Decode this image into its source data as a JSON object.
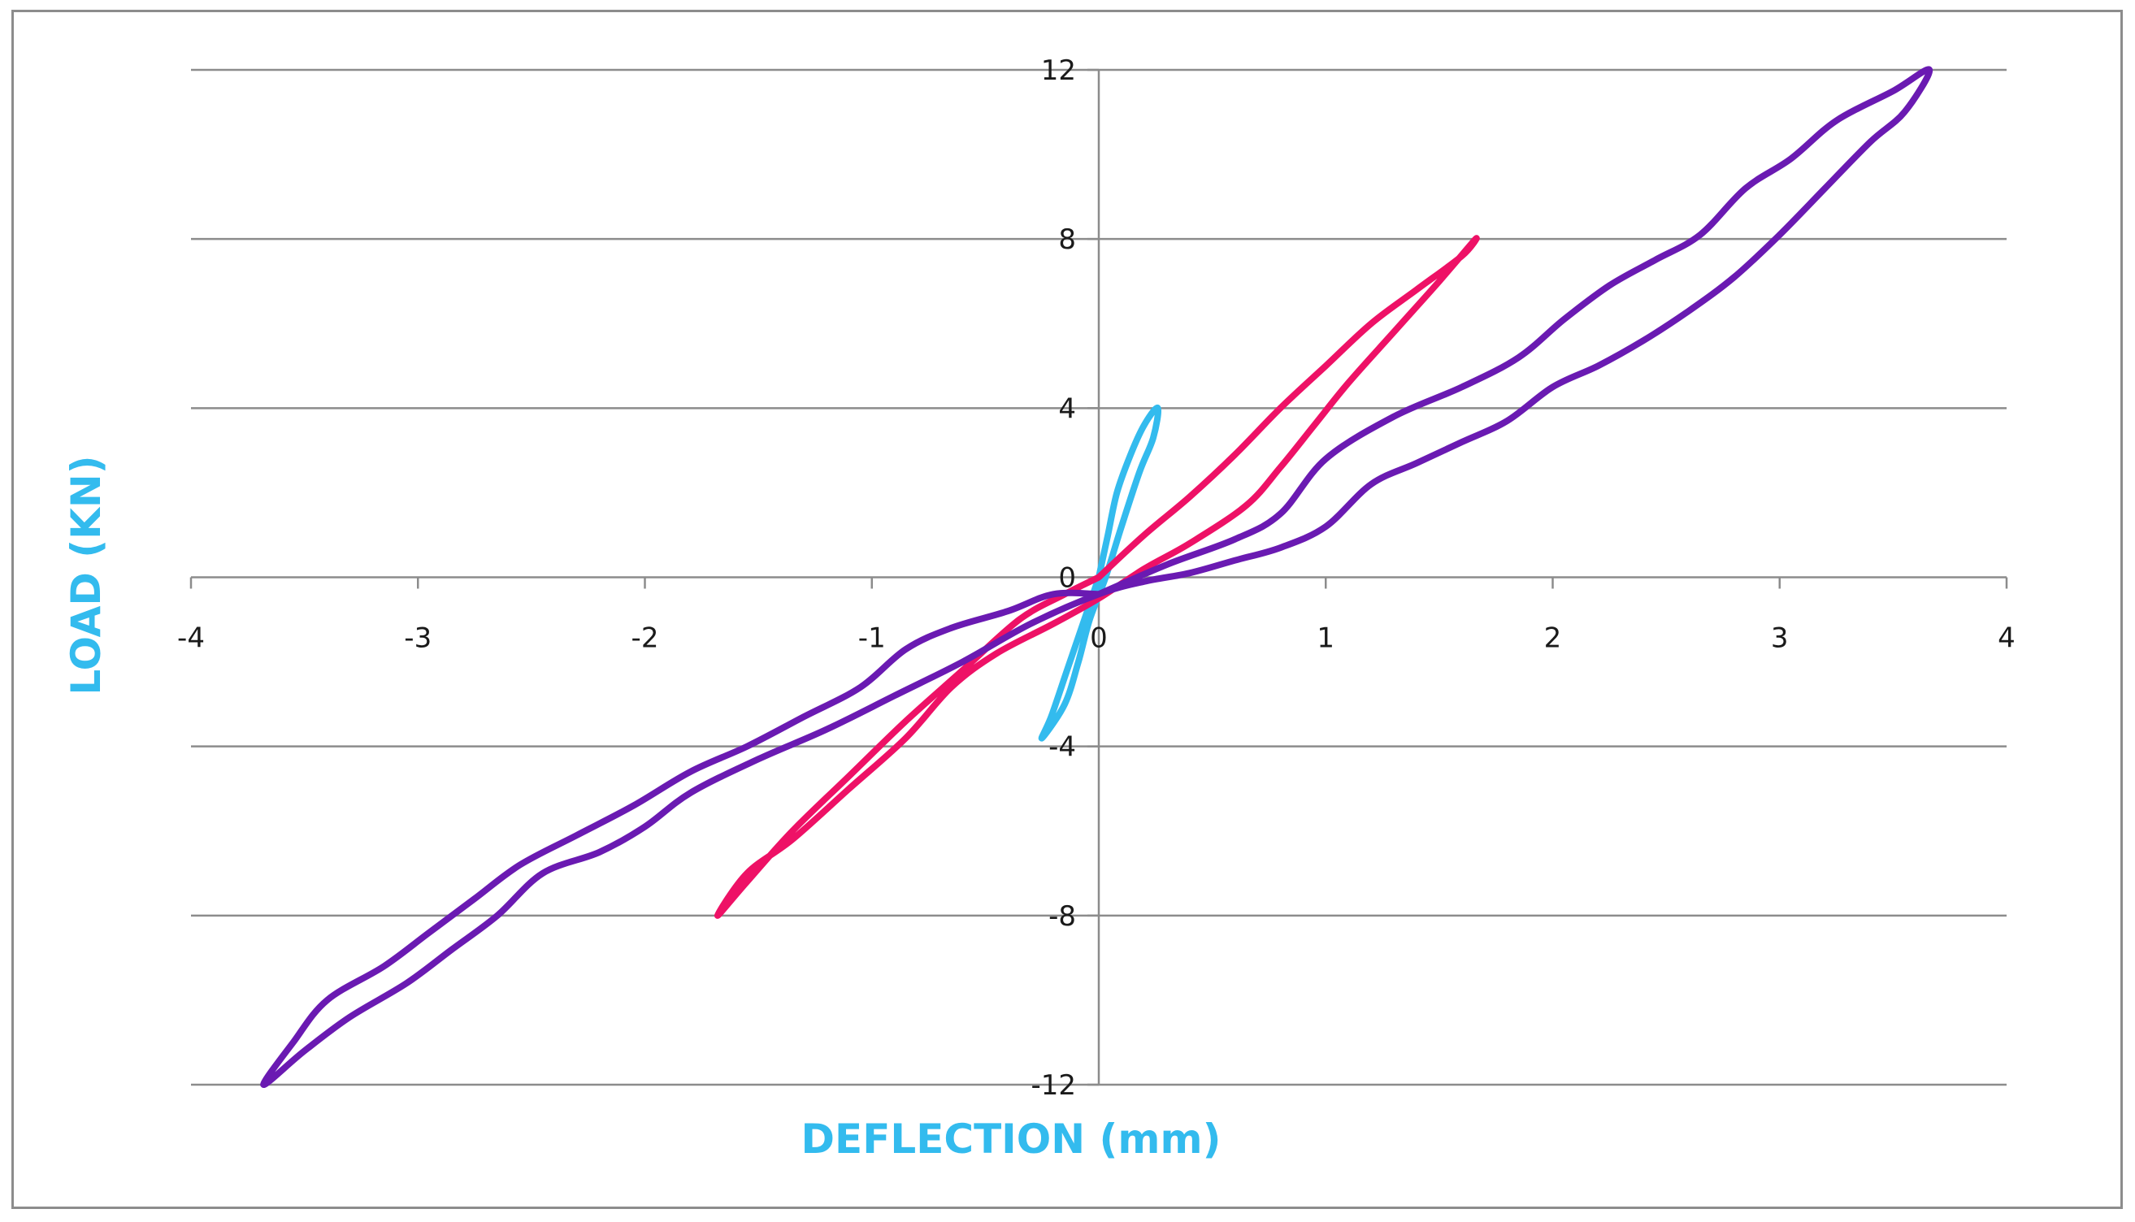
{
  "chart_data": {
    "type": "line",
    "title": "",
    "xlabel": "DEFLECTION (mm)",
    "ylabel": "LOAD (KN)",
    "xlim": [
      -4,
      4
    ],
    "ylim": [
      -12,
      12
    ],
    "x_ticks": [
      "-4",
      "-3",
      "-2",
      "-1",
      "0",
      "1",
      "2",
      "3",
      "4"
    ],
    "y_ticks": [
      "12",
      "8",
      "4",
      "0",
      "-4",
      "-8",
      "-12"
    ],
    "grid": "horizontal",
    "legend": "none",
    "axis_title_color": "#33bbee",
    "series": [
      {
        "color": "#33bbee",
        "points": [
          [
            0.0,
            0.0
          ],
          [
            0.04,
            1.0
          ],
          [
            0.08,
            2.0
          ],
          [
            0.14,
            2.9
          ],
          [
            0.2,
            3.6
          ],
          [
            0.26,
            4.0
          ],
          [
            0.24,
            3.3
          ],
          [
            0.18,
            2.5
          ],
          [
            0.1,
            1.2
          ],
          [
            0.03,
            0.0
          ],
          [
            -0.04,
            -1.0
          ],
          [
            -0.09,
            -2.0
          ],
          [
            -0.15,
            -3.0
          ],
          [
            -0.25,
            -3.8
          ],
          [
            -0.21,
            -3.3
          ],
          [
            -0.14,
            -2.2
          ],
          [
            -0.07,
            -1.1
          ],
          [
            0.0,
            0.0
          ]
        ]
      },
      {
        "color": "#ee1166",
        "points": [
          [
            0.0,
            0.0
          ],
          [
            0.2,
            1.0
          ],
          [
            0.4,
            1.9
          ],
          [
            0.6,
            2.9
          ],
          [
            0.8,
            4.0
          ],
          [
            1.0,
            5.0
          ],
          [
            1.2,
            6.0
          ],
          [
            1.4,
            6.8
          ],
          [
            1.6,
            7.6
          ],
          [
            1.66,
            8.0
          ],
          [
            1.5,
            7.0
          ],
          [
            1.3,
            5.8
          ],
          [
            1.1,
            4.6
          ],
          [
            0.95,
            3.6
          ],
          [
            0.8,
            2.6
          ],
          [
            0.65,
            1.7
          ],
          [
            0.4,
            0.8
          ],
          [
            0.2,
            0.2
          ],
          [
            0.0,
            -0.5
          ],
          [
            -0.2,
            -1.1
          ],
          [
            -0.45,
            -1.8
          ],
          [
            -0.65,
            -2.6
          ],
          [
            -0.85,
            -3.8
          ],
          [
            -1.1,
            -5.0
          ],
          [
            -1.35,
            -6.2
          ],
          [
            -1.55,
            -7.0
          ],
          [
            -1.68,
            -8.0
          ],
          [
            -1.55,
            -7.2
          ],
          [
            -1.35,
            -6.0
          ],
          [
            -1.1,
            -4.7
          ],
          [
            -0.85,
            -3.4
          ],
          [
            -0.6,
            -2.2
          ],
          [
            -0.35,
            -1.0
          ],
          [
            -0.15,
            -0.4
          ],
          [
            0.0,
            0.0
          ]
        ]
      },
      {
        "color": "#6a1ab2",
        "points": [
          [
            0.0,
            -0.4
          ],
          [
            0.3,
            0.3
          ],
          [
            0.6,
            0.9
          ],
          [
            0.8,
            1.5
          ],
          [
            1.0,
            2.8
          ],
          [
            1.3,
            3.8
          ],
          [
            1.6,
            4.5
          ],
          [
            1.85,
            5.2
          ],
          [
            2.05,
            6.1
          ],
          [
            2.25,
            6.9
          ],
          [
            2.45,
            7.5
          ],
          [
            2.65,
            8.1
          ],
          [
            2.85,
            9.2
          ],
          [
            3.05,
            9.9
          ],
          [
            3.25,
            10.8
          ],
          [
            3.5,
            11.5
          ],
          [
            3.66,
            12.0
          ],
          [
            3.55,
            11.0
          ],
          [
            3.4,
            10.3
          ],
          [
            3.2,
            9.2
          ],
          [
            3.0,
            8.1
          ],
          [
            2.8,
            7.1
          ],
          [
            2.6,
            6.3
          ],
          [
            2.4,
            5.6
          ],
          [
            2.2,
            5.0
          ],
          [
            2.0,
            4.5
          ],
          [
            1.8,
            3.7
          ],
          [
            1.6,
            3.2
          ],
          [
            1.4,
            2.7
          ],
          [
            1.2,
            2.2
          ],
          [
            1.0,
            1.2
          ],
          [
            0.8,
            0.7
          ],
          [
            0.6,
            0.4
          ],
          [
            0.4,
            0.1
          ],
          [
            0.2,
            -0.1
          ],
          [
            0.0,
            -0.4
          ],
          [
            -0.3,
            -1.1
          ],
          [
            -0.6,
            -2.0
          ],
          [
            -0.9,
            -2.8
          ],
          [
            -1.2,
            -3.6
          ],
          [
            -1.5,
            -4.3
          ],
          [
            -1.8,
            -5.1
          ],
          [
            -2.0,
            -5.9
          ],
          [
            -2.2,
            -6.5
          ],
          [
            -2.45,
            -7.0
          ],
          [
            -2.65,
            -8.0
          ],
          [
            -2.85,
            -8.8
          ],
          [
            -3.05,
            -9.6
          ],
          [
            -3.3,
            -10.4
          ],
          [
            -3.5,
            -11.2
          ],
          [
            -3.68,
            -12.0
          ],
          [
            -3.55,
            -11.0
          ],
          [
            -3.4,
            -10.0
          ],
          [
            -3.15,
            -9.2
          ],
          [
            -2.95,
            -8.4
          ],
          [
            -2.75,
            -7.6
          ],
          [
            -2.55,
            -6.8
          ],
          [
            -2.3,
            -6.1
          ],
          [
            -2.05,
            -5.4
          ],
          [
            -1.8,
            -4.6
          ],
          [
            -1.55,
            -4.0
          ],
          [
            -1.3,
            -3.3
          ],
          [
            -1.05,
            -2.6
          ],
          [
            -0.85,
            -1.7
          ],
          [
            -0.65,
            -1.2
          ],
          [
            -0.4,
            -0.8
          ],
          [
            -0.2,
            -0.4
          ],
          [
            0.0,
            -0.4
          ]
        ]
      }
    ]
  }
}
